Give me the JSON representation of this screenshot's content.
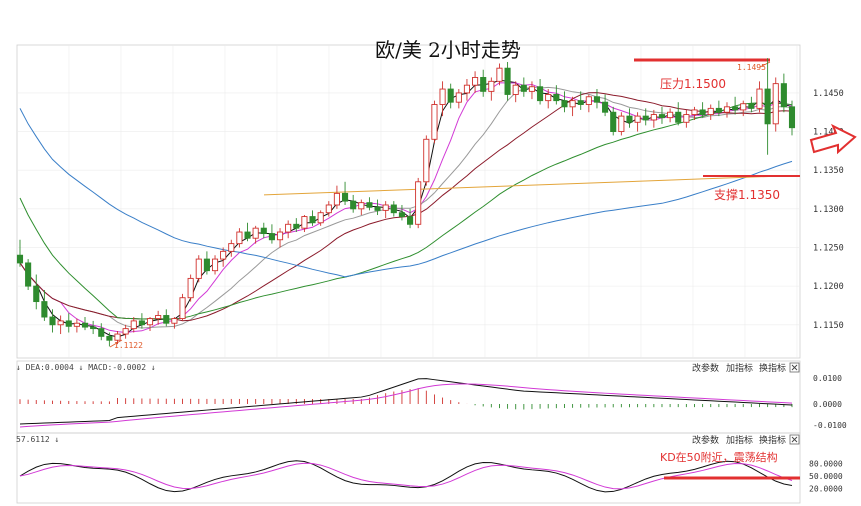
{
  "title": "欧/美 2小时走势",
  "annotations": {
    "resistance_label": "压力1.1500",
    "support_label": "支撑1.1350",
    "kd_note": "KD在50附近，震荡结构",
    "high_marker": "1.1495",
    "low_marker": "1.1122"
  },
  "colors": {
    "up": "#d0312d",
    "down": "#2e8b2e",
    "ma_black": "#111111",
    "ma_magenta": "#d23ad6",
    "ma_gray": "#9a9a9a",
    "ma_maroon": "#8b1a2a",
    "ma_green": "#2f8f2f",
    "ma_blue": "#3a7fc8",
    "level_line": "#e3a53a",
    "resistance_red": "#e23030"
  },
  "price_axis": {
    "ticks": [
      "1.1450",
      "1.1400",
      "1.1350",
      "1.1300",
      "1.1250",
      "1.1200",
      "1.1150"
    ],
    "min": 1.1107,
    "max": 1.1512
  },
  "macd_panel": {
    "header": "↓ DEA:0.0004 ↓ MACD:-0.0002 ↓",
    "buttons": [
      "改参数",
      "加指标",
      "换指标"
    ],
    "ticks": [
      "0.0100",
      "0.0000",
      "-0.0100"
    ]
  },
  "kd_panel": {
    "header": "57.6112 ↓",
    "buttons": [
      "改参数",
      "加指标",
      "换指标"
    ],
    "ticks": [
      "80.0000",
      "50.0000",
      "20.0000"
    ]
  },
  "close_icon": "close-icon",
  "arrow_icon": "right-arrow-icon",
  "chart_data": {
    "type": "candlestick",
    "title": "欧/美 2小时走势",
    "ylim": [
      1.1107,
      1.1512
    ],
    "resistance": 1.15,
    "support": 1.135,
    "session_high": 1.1495,
    "session_low": 1.1122,
    "candles": [
      [
        1.124,
        1.126,
        1.1225,
        1.123
      ],
      [
        1.123,
        1.1235,
        1.1195,
        1.12
      ],
      [
        1.12,
        1.1215,
        1.117,
        1.118
      ],
      [
        1.118,
        1.1195,
        1.1155,
        1.116
      ],
      [
        1.116,
        1.117,
        1.114,
        1.115
      ],
      [
        1.115,
        1.1162,
        1.1138,
        1.1155
      ],
      [
        1.1155,
        1.1165,
        1.114,
        1.1148
      ],
      [
        1.1148,
        1.1158,
        1.114,
        1.1152
      ],
      [
        1.1152,
        1.116,
        1.1143,
        1.1147
      ],
      [
        1.1147,
        1.1155,
        1.1138,
        1.1145
      ],
      [
        1.1145,
        1.1152,
        1.113,
        1.1135
      ],
      [
        1.1135,
        1.114,
        1.1122,
        1.113
      ],
      [
        1.113,
        1.1142,
        1.1125,
        1.1138
      ],
      [
        1.1138,
        1.115,
        1.1132,
        1.1145
      ],
      [
        1.1145,
        1.116,
        1.114,
        1.1155
      ],
      [
        1.1155,
        1.1165,
        1.1145,
        1.115
      ],
      [
        1.115,
        1.116,
        1.1142,
        1.1158
      ],
      [
        1.1158,
        1.1168,
        1.115,
        1.1162
      ],
      [
        1.1162,
        1.117,
        1.1148,
        1.1152
      ],
      [
        1.1152,
        1.116,
        1.1145,
        1.1158
      ],
      [
        1.1158,
        1.119,
        1.1155,
        1.1185
      ],
      [
        1.1185,
        1.1215,
        1.118,
        1.121
      ],
      [
        1.121,
        1.124,
        1.1205,
        1.1235
      ],
      [
        1.1235,
        1.1245,
        1.1215,
        1.122
      ],
      [
        1.122,
        1.124,
        1.1215,
        1.1235
      ],
      [
        1.1235,
        1.125,
        1.1225,
        1.1245
      ],
      [
        1.1245,
        1.126,
        1.1238,
        1.1255
      ],
      [
        1.1255,
        1.1275,
        1.125,
        1.127
      ],
      [
        1.127,
        1.1282,
        1.1258,
        1.1262
      ],
      [
        1.1262,
        1.1278,
        1.1255,
        1.1275
      ],
      [
        1.1275,
        1.1282,
        1.1262,
        1.1268
      ],
      [
        1.1268,
        1.128,
        1.1255,
        1.126
      ],
      [
        1.126,
        1.1275,
        1.125,
        1.127
      ],
      [
        1.127,
        1.1285,
        1.1262,
        1.128
      ],
      [
        1.128,
        1.1288,
        1.127,
        1.1275
      ],
      [
        1.1275,
        1.1292,
        1.127,
        1.129
      ],
      [
        1.129,
        1.1298,
        1.1278,
        1.1282
      ],
      [
        1.1282,
        1.1298,
        1.1278,
        1.1295
      ],
      [
        1.1295,
        1.131,
        1.129,
        1.1305
      ],
      [
        1.1305,
        1.133,
        1.13,
        1.132
      ],
      [
        1.132,
        1.1335,
        1.1305,
        1.131
      ],
      [
        1.131,
        1.1318,
        1.1295,
        1.13
      ],
      [
        1.13,
        1.1312,
        1.1292,
        1.1308
      ],
      [
        1.1308,
        1.1315,
        1.1298,
        1.1302
      ],
      [
        1.1302,
        1.1312,
        1.1292,
        1.1298
      ],
      [
        1.1298,
        1.131,
        1.1288,
        1.1305
      ],
      [
        1.1305,
        1.131,
        1.129,
        1.1295
      ],
      [
        1.1295,
        1.1305,
        1.1285,
        1.129
      ],
      [
        1.129,
        1.13,
        1.1275,
        1.128
      ],
      [
        1.128,
        1.134,
        1.1275,
        1.1335
      ],
      [
        1.1335,
        1.1395,
        1.133,
        1.139
      ],
      [
        1.139,
        1.144,
        1.1385,
        1.1435
      ],
      [
        1.1435,
        1.1465,
        1.142,
        1.1455
      ],
      [
        1.1455,
        1.1462,
        1.143,
        1.1438
      ],
      [
        1.1438,
        1.1455,
        1.143,
        1.145
      ],
      [
        1.145,
        1.1468,
        1.144,
        1.146
      ],
      [
        1.146,
        1.1478,
        1.145,
        1.147
      ],
      [
        1.147,
        1.148,
        1.1445,
        1.1452
      ],
      [
        1.1452,
        1.147,
        1.144,
        1.1465
      ],
      [
        1.1465,
        1.1488,
        1.146,
        1.1482
      ],
      [
        1.1482,
        1.149,
        1.144,
        1.1448
      ],
      [
        1.1448,
        1.1465,
        1.1438,
        1.146
      ],
      [
        1.146,
        1.147,
        1.1445,
        1.1452
      ],
      [
        1.1452,
        1.1465,
        1.1442,
        1.1458
      ],
      [
        1.1458,
        1.1468,
        1.1435,
        1.144
      ],
      [
        1.144,
        1.1455,
        1.143,
        1.1448
      ],
      [
        1.1448,
        1.146,
        1.1435,
        1.144
      ],
      [
        1.144,
        1.1452,
        1.1425,
        1.1432
      ],
      [
        1.1432,
        1.1445,
        1.142,
        1.144
      ],
      [
        1.144,
        1.1452,
        1.1428,
        1.1435
      ],
      [
        1.1435,
        1.1448,
        1.1425,
        1.1445
      ],
      [
        1.1445,
        1.1455,
        1.143,
        1.1438
      ],
      [
        1.1438,
        1.1448,
        1.142,
        1.1425
      ],
      [
        1.1425,
        1.1432,
        1.1395,
        1.14
      ],
      [
        1.14,
        1.1425,
        1.1395,
        1.142
      ],
      [
        1.142,
        1.143,
        1.1405,
        1.1412
      ],
      [
        1.1412,
        1.1425,
        1.14,
        1.142
      ],
      [
        1.142,
        1.143,
        1.1408,
        1.1415
      ],
      [
        1.1415,
        1.1428,
        1.1405,
        1.1422
      ],
      [
        1.1422,
        1.1432,
        1.141,
        1.1418
      ],
      [
        1.1418,
        1.143,
        1.1412,
        1.1425
      ],
      [
        1.1425,
        1.1438,
        1.1408,
        1.1412
      ],
      [
        1.1412,
        1.1428,
        1.1405,
        1.1422
      ],
      [
        1.1422,
        1.1432,
        1.1415,
        1.1428
      ],
      [
        1.1428,
        1.1438,
        1.1418,
        1.1422
      ],
      [
        1.1422,
        1.1435,
        1.1415,
        1.143
      ],
      [
        1.143,
        1.144,
        1.142,
        1.1425
      ],
      [
        1.1425,
        1.1438,
        1.1418,
        1.1432
      ],
      [
        1.1432,
        1.1445,
        1.1422,
        1.1428
      ],
      [
        1.1428,
        1.144,
        1.142,
        1.1436
      ],
      [
        1.1436,
        1.1445,
        1.1425,
        1.143
      ],
      [
        1.143,
        1.1465,
        1.1425,
        1.1455
      ],
      [
        1.1455,
        1.1495,
        1.137,
        1.141
      ],
      [
        1.141,
        1.147,
        1.14,
        1.1462
      ],
      [
        1.1462,
        1.1475,
        1.1425,
        1.1432
      ],
      [
        1.1432,
        1.144,
        1.1395,
        1.1405
      ]
    ],
    "macd": {
      "dif_start": -0.01,
      "dea_start": -0.011,
      "bar_range": [
        -0.0045,
        0.0045
      ]
    },
    "kd": {
      "range": [
        0,
        100
      ],
      "reference": 50
    }
  }
}
